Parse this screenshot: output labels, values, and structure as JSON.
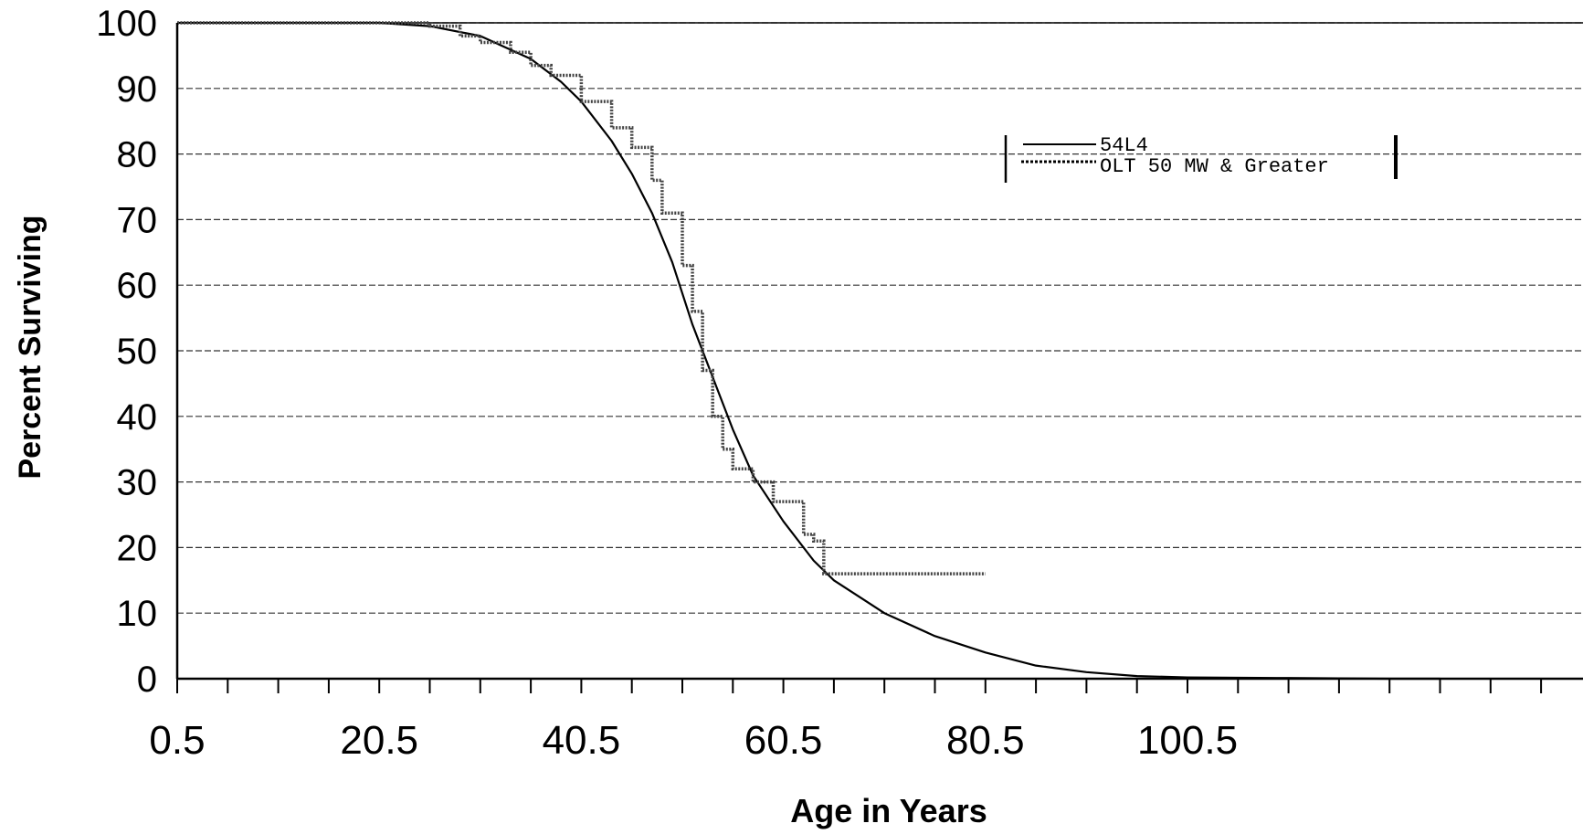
{
  "chart_data": {
    "type": "line",
    "title": "",
    "xlabel": "Age in Years",
    "ylabel": "Percent Surviving",
    "xlim": [
      0.5,
      125.5
    ],
    "ylim": [
      0,
      100
    ],
    "x_tick_labels": [
      "0.5",
      "20.5",
      "40.5",
      "60.5",
      "80.5",
      "100.5"
    ],
    "y_tick_labels": [
      "0",
      "10",
      "20",
      "30",
      "40",
      "50",
      "60",
      "70",
      "80",
      "90",
      "100"
    ],
    "grid": true,
    "legend_position": "top-right",
    "series": [
      {
        "name": "54L4",
        "style": "smooth curve",
        "color": "#000000",
        "x": [
          0.5,
          10.5,
          20.5,
          25.5,
          30.5,
          35.5,
          38.5,
          40.5,
          43.5,
          45.5,
          47.5,
          49.5,
          51.5,
          53.5,
          55.5,
          57.5,
          60.5,
          63.5,
          65.5,
          68.5,
          70.5,
          75.5,
          80.5,
          85.5,
          90.5,
          95.5,
          100.5,
          110.5,
          120.5,
          125.5
        ],
        "y": [
          100,
          100,
          100,
          99.5,
          98,
          94.5,
          91,
          88,
          82,
          77,
          71,
          63.5,
          54,
          46,
          38,
          31,
          24,
          18,
          15,
          12,
          10,
          6.5,
          4,
          2,
          1,
          0.4,
          0.2,
          0.1,
          0,
          0
        ]
      },
      {
        "name": "OLT 50 MW & Greater",
        "style": "stepped observed",
        "color": "#000000",
        "x": [
          0.5,
          10.5,
          20.5,
          25.5,
          28.5,
          30.5,
          33.5,
          35.5,
          37.5,
          40.5,
          43.5,
          45.5,
          47.5,
          48.5,
          50.5,
          51.5,
          52.5,
          53.5,
          54.5,
          55.5,
          57.5,
          59.5,
          61.5,
          62.5,
          63.5,
          64.5,
          66.5,
          70.5,
          75.5,
          80.5
        ],
        "y": [
          100,
          100,
          100,
          99.5,
          98,
          97,
          95.5,
          93.5,
          92,
          88,
          84,
          81,
          76,
          71,
          63,
          56,
          47,
          40,
          35,
          32,
          30,
          27,
          27,
          22,
          21,
          16,
          16,
          16,
          16,
          16
        ]
      }
    ]
  }
}
